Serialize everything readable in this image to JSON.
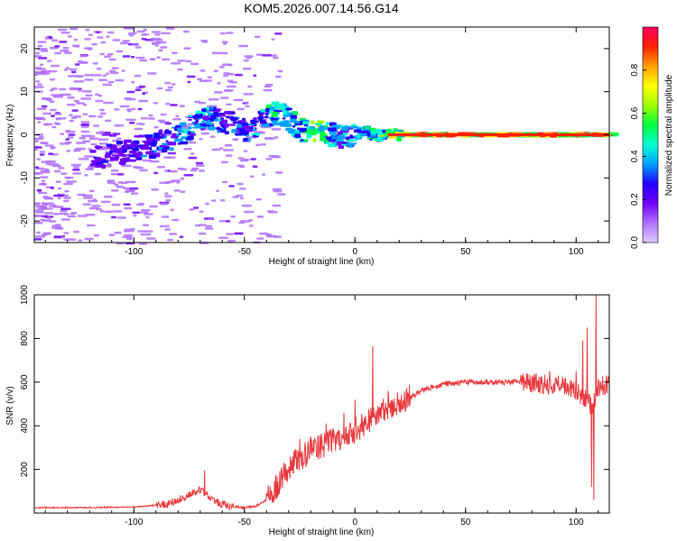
{
  "chart_data": [
    {
      "type": "heatmap",
      "title": "KOM5.2026.007.14.56.G14",
      "xlabel": "Height of straight line (km)",
      "ylabel": "Frequency (Hz)",
      "xlim": [
        -145,
        115
      ],
      "ylim": [
        -25,
        25
      ],
      "xticks": [
        -100,
        -50,
        0,
        50,
        100
      ],
      "yticks": [
        -20,
        -10,
        0,
        10,
        20
      ],
      "colorbar": {
        "label": "Normalized spectral amplitude",
        "range": [
          0,
          1
        ],
        "ticks": [
          0.0,
          0.2,
          0.4,
          0.6,
          0.8
        ],
        "colormap": [
          "#e0c8ff",
          "#b070ff",
          "#7000ff",
          "#2000ff",
          "#00a0ff",
          "#00ffd0",
          "#00ff40",
          "#a0ff00",
          "#ffff00",
          "#ffa000",
          "#ff2000",
          "#ff0060"
        ]
      },
      "ridge": {
        "x": [
          -115,
          -100,
          -90,
          -80,
          -72,
          -65,
          -60,
          -55,
          -50,
          -45,
          -40,
          -35,
          -30,
          -25,
          -20,
          -15,
          -10,
          -5,
          0,
          5,
          10,
          15,
          20,
          40,
          60,
          80,
          100,
          115
        ],
        "y": [
          -5,
          -3.5,
          -2,
          0,
          3,
          4,
          3,
          2,
          1,
          2.5,
          4.5,
          5,
          3,
          1,
          0.5,
          0.3,
          0,
          -1,
          0.5,
          0.5,
          -0.3,
          0,
          0,
          0,
          0,
          0,
          0,
          0
        ],
        "amplitude": [
          0.25,
          0.3,
          0.35,
          0.4,
          0.45,
          0.4,
          0.3,
          0.35,
          0.4,
          0.45,
          0.5,
          0.55,
          0.5,
          0.5,
          0.7,
          0.6,
          0.4,
          0.45,
          0.45,
          0.5,
          0.6,
          0.7,
          0.85,
          0.95,
          0.95,
          0.95,
          0.9,
          0.85
        ]
      },
      "grid": false
    },
    {
      "type": "line",
      "xlabel": "Height of straight line (km)",
      "ylabel": "SNR (v/v)",
      "xlim": [
        -145,
        115
      ],
      "ylim": [
        0,
        1000
      ],
      "xticks": [
        -100,
        -50,
        0,
        50,
        100
      ],
      "yticks": [
        200,
        400,
        600,
        800,
        1000
      ],
      "color": "#e8383d",
      "envelope": {
        "x": [
          -145,
          -120,
          -100,
          -85,
          -80,
          -75,
          -70,
          -65,
          -60,
          -55,
          -50,
          -45,
          -40,
          -35,
          -30,
          -25,
          -20,
          -15,
          -10,
          -5,
          0,
          5,
          10,
          15,
          20,
          25,
          30,
          40,
          50,
          60,
          70,
          75,
          80,
          85,
          90,
          95,
          100,
          102,
          105,
          107,
          108,
          110,
          115
        ],
        "y": [
          25,
          25,
          28,
          40,
          60,
          80,
          110,
          60,
          40,
          30,
          25,
          30,
          60,
          130,
          210,
          250,
          290,
          310,
          330,
          350,
          380,
          410,
          450,
          480,
          510,
          530,
          560,
          590,
          600,
          600,
          600,
          600,
          600,
          590,
          590,
          580,
          560,
          540,
          520,
          480,
          500,
          580,
          590
        ]
      },
      "spikes": [
        {
          "x": -68,
          "y": 195
        },
        {
          "x": -25,
          "y": 340
        },
        {
          "x": -20,
          "y": 350
        },
        {
          "x": -13,
          "y": 410
        },
        {
          "x": -5,
          "y": 460
        },
        {
          "x": 0,
          "y": 520
        },
        {
          "x": 8,
          "y": 765
        },
        {
          "x": 15,
          "y": 560
        },
        {
          "x": 88,
          "y": 650
        },
        {
          "x": 100,
          "y": 650
        },
        {
          "x": 103,
          "y": 790
        },
        {
          "x": 105,
          "y": 850
        },
        {
          "x": 107,
          "y": 120
        },
        {
          "x": 108,
          "y": 60
        },
        {
          "x": 109,
          "y": 1030
        }
      ],
      "grid": false
    }
  ]
}
